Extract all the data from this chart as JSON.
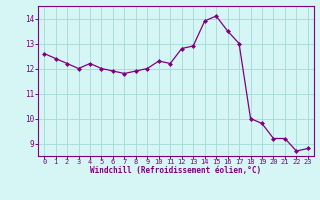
{
  "x": [
    0,
    1,
    2,
    3,
    4,
    5,
    6,
    7,
    8,
    9,
    10,
    11,
    12,
    13,
    14,
    15,
    16,
    17,
    18,
    19,
    20,
    21,
    22,
    23
  ],
  "y": [
    12.6,
    12.4,
    12.2,
    12.0,
    12.2,
    12.0,
    11.9,
    11.8,
    11.9,
    12.0,
    12.3,
    12.2,
    12.8,
    12.9,
    13.9,
    14.1,
    13.5,
    13.0,
    10.0,
    9.8,
    9.2,
    9.2,
    8.7,
    8.8
  ],
  "line_color": "#800080",
  "marker_color": "#800080",
  "bg_color": "#d6f5f5",
  "grid_color": "#aadddd",
  "xlabel": "Windchill (Refroidissement éolien,°C)",
  "xlabel_color": "#800080",
  "tick_color": "#800080",
  "spine_color": "#800080",
  "ylim": [
    8.5,
    14.5
  ],
  "yticks": [
    9,
    10,
    11,
    12,
    13,
    14
  ],
  "xlim": [
    -0.5,
    23.5
  ],
  "xticks": [
    0,
    1,
    2,
    3,
    4,
    5,
    6,
    7,
    8,
    9,
    10,
    11,
    12,
    13,
    14,
    15,
    16,
    17,
    18,
    19,
    20,
    21,
    22,
    23
  ],
  "figsize": [
    3.2,
    2.0
  ],
  "dpi": 100
}
